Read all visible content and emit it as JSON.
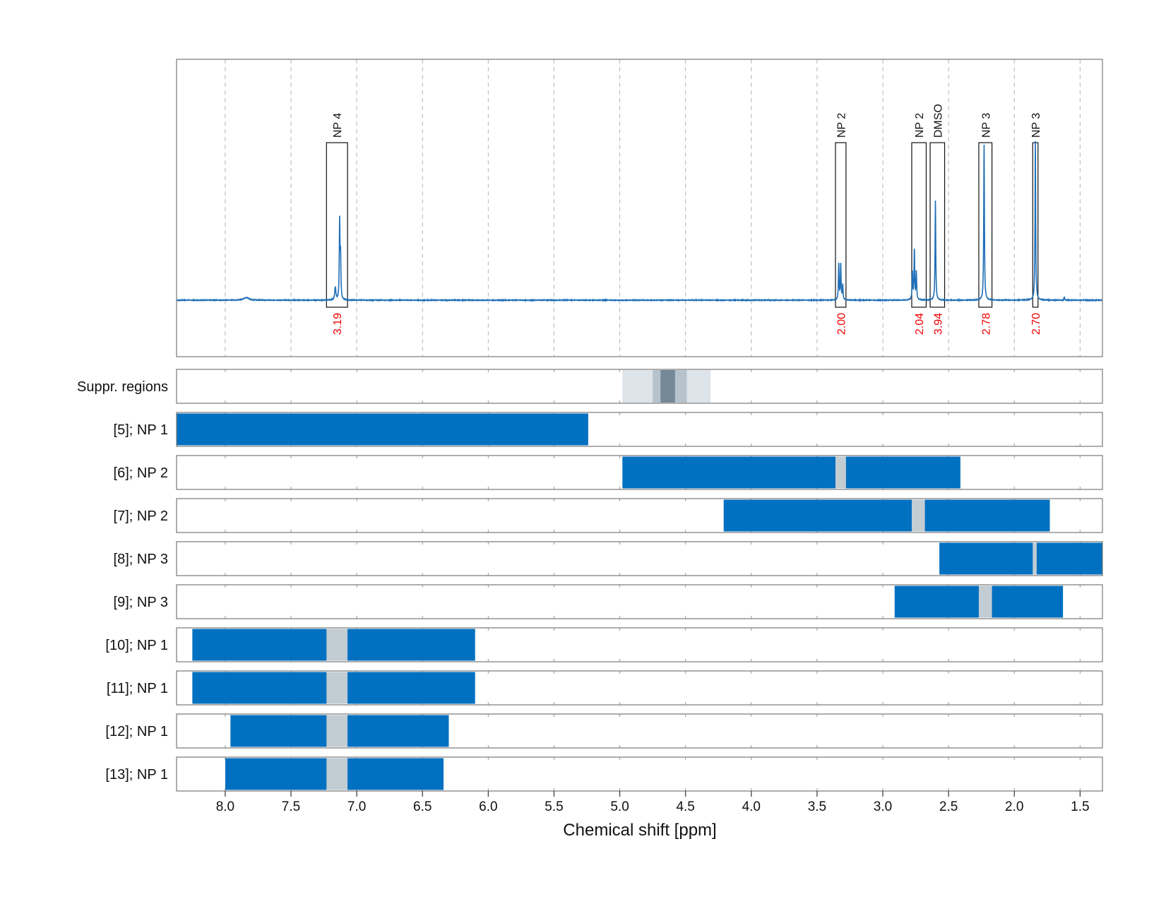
{
  "chart_data": {
    "type": "nmr-spectrum-with-range-panels",
    "xlabel": "Chemical shift [ppm]",
    "x_axis": {
      "reversed": true,
      "range": [
        8.37,
        1.33
      ],
      "ticks": [
        8.0,
        7.5,
        7.0,
        6.5,
        6.0,
        5.5,
        5.0,
        4.5,
        4.0,
        3.5,
        3.0,
        2.5,
        2.0,
        1.5
      ],
      "tick_labels": [
        "8.0",
        "7.5",
        "7.0",
        "6.5",
        "6.0",
        "5.5",
        "5.0",
        "4.5",
        "4.0",
        "3.5",
        "3.0",
        "2.5",
        "2.0",
        "1.5"
      ]
    },
    "colors": {
      "spectrum": "#1f6fb8",
      "range_bar": "#0070c0",
      "excluded_gap": "#c1ccd3",
      "integral_label": "#ee0000",
      "suppression_light": "#dde4ea",
      "suppression_mid": "#b6c3cc",
      "suppression_dark": "#758895"
    },
    "spectrum": {
      "baseline_ppm": [
        8.37,
        1.33
      ],
      "peaks": [
        {
          "ppm": 7.84,
          "height": 0.012,
          "width": 0.025
        },
        {
          "ppm": 7.163,
          "height": 0.06,
          "width": 0.005
        },
        {
          "ppm": 7.13,
          "height": 0.37,
          "width": 0.003
        },
        {
          "ppm": 7.123,
          "height": 0.2,
          "width": 0.003
        },
        {
          "ppm": 3.335,
          "height": 0.17,
          "width": 0.003
        },
        {
          "ppm": 3.32,
          "height": 0.17,
          "width": 0.003
        },
        {
          "ppm": 3.305,
          "height": 0.07,
          "width": 0.003
        },
        {
          "ppm": 2.775,
          "height": 0.13,
          "width": 0.003
        },
        {
          "ppm": 2.76,
          "height": 0.24,
          "width": 0.003
        },
        {
          "ppm": 2.745,
          "height": 0.13,
          "width": 0.003
        },
        {
          "ppm": 2.6,
          "height": 0.47,
          "width": 0.003
        },
        {
          "ppm": 2.23,
          "height": 0.74,
          "width": 0.003
        },
        {
          "ppm": 1.84,
          "height": 0.76,
          "width": 0.003
        },
        {
          "ppm": 1.62,
          "height": 0.015,
          "width": 0.003
        }
      ],
      "annotations": [
        {
          "label": "NP 4",
          "ppm_start": 7.23,
          "ppm_end": 7.07,
          "integral": "3.19"
        },
        {
          "label": "NP 2",
          "ppm_start": 3.36,
          "ppm_end": 3.28,
          "integral": "2.00"
        },
        {
          "label": "NP 2",
          "ppm_start": 2.78,
          "ppm_end": 2.67,
          "integral": "2.04"
        },
        {
          "label": "DMSO",
          "ppm_start": 2.64,
          "ppm_end": 2.53,
          "integral": "3.94"
        },
        {
          "label": "NP 3",
          "ppm_start": 2.27,
          "ppm_end": 2.17,
          "integral": "2.78"
        },
        {
          "label": "NP 3",
          "ppm_start": 1.86,
          "ppm_end": 1.82,
          "integral": "2.70"
        }
      ]
    },
    "suppression": {
      "label": "Suppr. regions",
      "light": [
        4.98,
        4.31
      ],
      "mid": [
        4.75,
        4.49
      ],
      "dark": [
        4.69,
        4.58
      ]
    },
    "range_rows": [
      {
        "label": "[5]; NP 1",
        "start": 8.37,
        "end": 5.24,
        "gap": null
      },
      {
        "label": "[6]; NP 2",
        "start": 4.98,
        "end": 2.41,
        "gap": [
          3.36,
          3.28
        ]
      },
      {
        "label": "[7]; NP 2",
        "start": 4.21,
        "end": 1.73,
        "gap": [
          2.78,
          2.68
        ]
      },
      {
        "label": "[8]; NP 3",
        "start": 2.57,
        "end": 1.33,
        "gap": [
          1.86,
          1.83
        ]
      },
      {
        "label": "[9]; NP 3",
        "start": 2.91,
        "end": 1.63,
        "gap": [
          2.27,
          2.17
        ]
      },
      {
        "label": "[10]; NP 1",
        "start": 8.25,
        "end": 6.1,
        "gap": [
          7.23,
          7.07
        ]
      },
      {
        "label": "[11]; NP 1",
        "start": 8.25,
        "end": 6.1,
        "gap": [
          7.23,
          7.07
        ]
      },
      {
        "label": "[12]; NP 1",
        "start": 7.96,
        "end": 6.3,
        "gap": [
          7.23,
          7.07
        ]
      },
      {
        "label": "[13]; NP 1",
        "start": 8.0,
        "end": 6.34,
        "gap": [
          7.23,
          7.07
        ]
      }
    ]
  }
}
